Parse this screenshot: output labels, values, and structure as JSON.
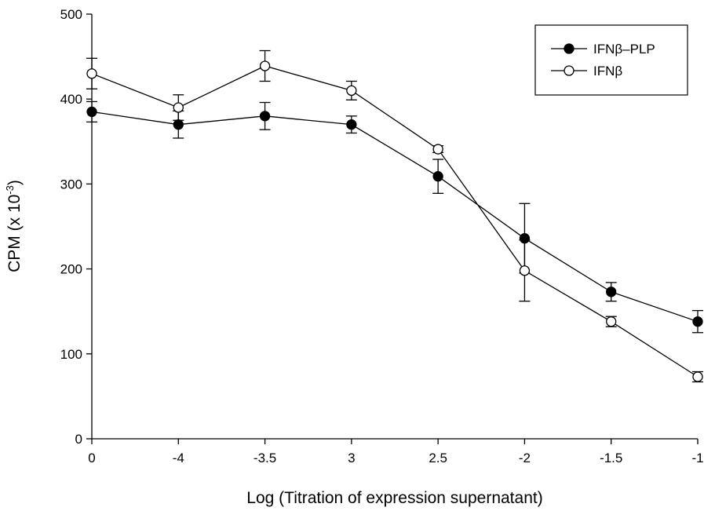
{
  "chart_data": {
    "type": "line",
    "x_tick_labels": [
      "0",
      "-4",
      "-3.5",
      "3",
      "2.5",
      "-2",
      "-1.5",
      "-1"
    ],
    "xlabel": "Log (Titration of expression supernatant)",
    "ylabel_base": "CPM (x 10",
    "ylabel_exponent": "-3",
    "ylabel_close": ")",
    "ylim": [
      0,
      500
    ],
    "y_ticks": [
      "0",
      "100",
      "200",
      "300",
      "400",
      "500"
    ],
    "grid": false,
    "legend_position": "top-right",
    "series": [
      {
        "name": "IFNβ–PLP",
        "marker": "filled-circle",
        "values": [
          385,
          370,
          380,
          370,
          309,
          236,
          173,
          138
        ],
        "errors": [
          12,
          16,
          16,
          10,
          20,
          41,
          11,
          13
        ]
      },
      {
        "name": "IFNβ",
        "marker": "open-circle",
        "values": [
          430,
          390,
          439,
          410,
          341,
          198,
          138,
          73
        ],
        "errors": [
          18,
          15,
          18,
          11,
          4,
          36,
          6,
          6
        ]
      }
    ]
  }
}
